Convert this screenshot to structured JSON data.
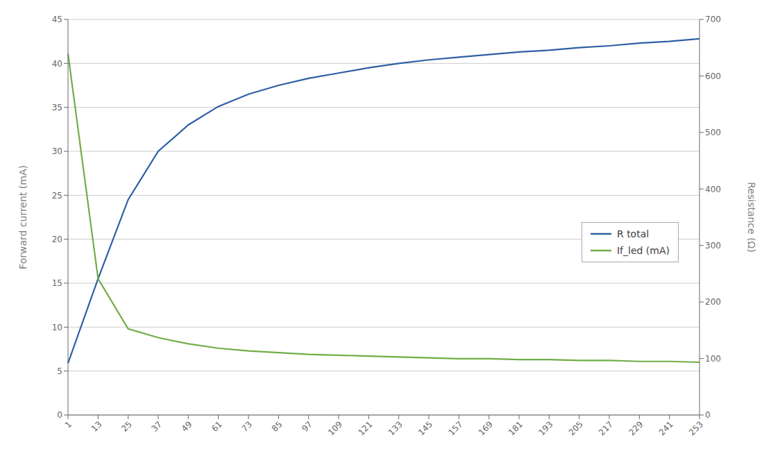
{
  "chart_data": {
    "type": "line",
    "categories": [
      "1",
      "13",
      "25",
      "37",
      "49",
      "61",
      "73",
      "85",
      "97",
      "109",
      "121",
      "133",
      "145",
      "157",
      "169",
      "181",
      "193",
      "205",
      "217",
      "229",
      "241",
      "253"
    ],
    "series": [
      {
        "name": "R total",
        "color": "#2E5FA3",
        "values": [
          5.9,
          15.5,
          24.5,
          30.0,
          33.0,
          35.1,
          36.5,
          37.5,
          38.3,
          38.9,
          39.5,
          40.0,
          40.4,
          40.7,
          41.0,
          41.3,
          41.5,
          41.8,
          42.0,
          42.3,
          42.5,
          42.8
        ]
      },
      {
        "name": "If_led (mA)",
        "color": "#70AD47",
        "values": [
          41.1,
          15.5,
          9.8,
          8.8,
          8.1,
          7.6,
          7.3,
          7.1,
          6.9,
          6.8,
          6.7,
          6.6,
          6.5,
          6.4,
          6.4,
          6.3,
          6.3,
          6.2,
          6.2,
          6.1,
          6.1,
          6.0
        ]
      }
    ],
    "ylim": [
      0,
      45
    ],
    "yticks": [
      0,
      5,
      10,
      15,
      20,
      25,
      30,
      35,
      40,
      45
    ],
    "y2lim": [
      0,
      700
    ],
    "y2ticks": [
      0,
      100,
      200,
      300,
      400,
      500,
      600,
      700
    ],
    "ylabel": "Forward current (mA)",
    "y2label": "Resistance (Ω)",
    "grid": true,
    "legend": "lower right"
  }
}
